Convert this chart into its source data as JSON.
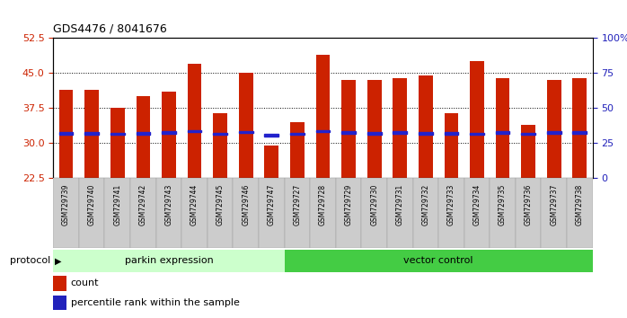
{
  "title": "GDS4476 / 8041676",
  "samples": [
    "GSM729739",
    "GSM729740",
    "GSM729741",
    "GSM729742",
    "GSM729743",
    "GSM729744",
    "GSM729745",
    "GSM729746",
    "GSM729747",
    "GSM729727",
    "GSM729728",
    "GSM729729",
    "GSM729730",
    "GSM729731",
    "GSM729732",
    "GSM729733",
    "GSM729734",
    "GSM729735",
    "GSM729736",
    "GSM729737",
    "GSM729738"
  ],
  "count_values": [
    41.5,
    41.5,
    37.5,
    40.0,
    41.0,
    47.0,
    36.5,
    45.0,
    29.5,
    34.5,
    49.0,
    43.5,
    43.5,
    44.0,
    44.5,
    36.5,
    47.5,
    44.0,
    34.0,
    43.5,
    44.0
  ],
  "percentile_values": [
    32.0,
    32.0,
    31.5,
    32.0,
    32.5,
    33.5,
    31.5,
    33.0,
    30.5,
    31.5,
    33.5,
    32.5,
    32.0,
    32.5,
    32.0,
    32.0,
    31.5,
    32.5,
    31.5,
    32.5,
    32.5
  ],
  "parkin_count": 9,
  "vector_count": 12,
  "ylim": [
    22.5,
    52.5
  ],
  "y_ticks": [
    22.5,
    30.0,
    37.5,
    45.0,
    52.5
  ],
  "y2_ticks": [
    0,
    25,
    50,
    75,
    100
  ],
  "bar_color": "#CC2200",
  "percentile_color": "#2222CC",
  "parkin_bg": "#CCFFCC",
  "vector_bg": "#44CC44",
  "ylabel_color": "#CC2200",
  "y2label_color": "#2222BB",
  "grid_color": "#000000",
  "tick_bg_color": "#CCCCCC",
  "legend_count_color": "#CC2200",
  "legend_pct_color": "#2222BB"
}
